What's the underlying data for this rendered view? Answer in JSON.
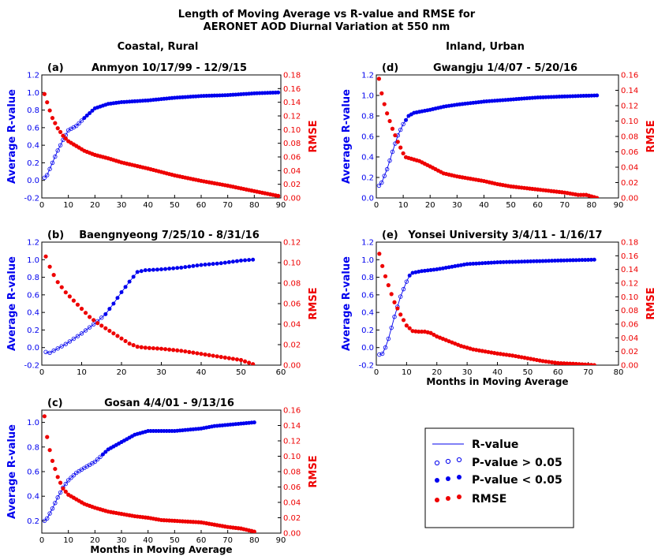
{
  "figure": {
    "title_line1": "Length of Moving Average vs R-value and RMSE for",
    "title_line2": "AERONET AOD Diurnal Variation at 550 nm",
    "column_left": "Coastal, Rural",
    "column_right": "Inland, Urban",
    "colors": {
      "r_value": "#0000ee",
      "rmse": "#ee0000",
      "axis": "#000000"
    }
  },
  "legend": {
    "items": [
      {
        "key": "line",
        "label": "R-value"
      },
      {
        "key": "open",
        "label": "P-value > 0.05"
      },
      {
        "key": "filled",
        "label": "P-value < 0.05"
      },
      {
        "key": "rmse",
        "label": "RMSE"
      }
    ]
  },
  "chart_data": [
    {
      "id": "a",
      "type": "line",
      "letter": "(a)",
      "title": "Anmyon 10/17/99 - 12/9/15",
      "xlabel": "",
      "ylabel_left": "Average R-value",
      "ylabel_right": "RMSE",
      "xlim": [
        0,
        90
      ],
      "xticks": [
        0,
        10,
        20,
        30,
        40,
        50,
        60,
        70,
        80,
        90
      ],
      "ylim_left": [
        -0.2,
        1.2
      ],
      "yticks_left": [
        -0.2,
        0.0,
        0.2,
        0.4,
        0.6,
        0.8,
        1.0,
        1.2
      ],
      "ylim_right": [
        0,
        0.18
      ],
      "yticks_right": [
        0.0,
        0.02,
        0.04,
        0.06,
        0.08,
        0.1,
        0.12,
        0.14,
        0.16,
        0.18
      ],
      "n_max": 89,
      "sig_from": 16,
      "series": [
        {
          "name": "R-value",
          "x": [
            1,
            2,
            4,
            6,
            8,
            10,
            13,
            16,
            20,
            25,
            30,
            40,
            50,
            60,
            70,
            80,
            89
          ],
          "y": [
            0.03,
            0.06,
            0.2,
            0.34,
            0.46,
            0.57,
            0.62,
            0.71,
            0.82,
            0.87,
            0.89,
            0.91,
            0.94,
            0.96,
            0.97,
            0.99,
            1.0
          ]
        },
        {
          "name": "RMSE",
          "x": [
            1,
            2,
            3,
            4,
            6,
            8,
            10,
            13,
            16,
            20,
            25,
            30,
            40,
            50,
            60,
            70,
            80,
            89
          ],
          "y": [
            0.152,
            0.14,
            0.128,
            0.117,
            0.102,
            0.091,
            0.083,
            0.076,
            0.069,
            0.063,
            0.058,
            0.052,
            0.043,
            0.033,
            0.025,
            0.018,
            0.01,
            0.003
          ]
        }
      ]
    },
    {
      "id": "b",
      "type": "line",
      "letter": "(b)",
      "title": "Baengnyeong 7/25/10 - 8/31/16",
      "xlabel": "",
      "ylabel_left": "Average R-value",
      "ylabel_right": "RMSE",
      "xlim": [
        0,
        60
      ],
      "xticks": [
        0,
        10,
        20,
        30,
        40,
        50,
        60
      ],
      "ylim_left": [
        -0.2,
        1.2
      ],
      "yticks_left": [
        -0.2,
        0.0,
        0.2,
        0.4,
        0.6,
        0.8,
        1.0,
        1.2
      ],
      "ylim_right": [
        0,
        0.12
      ],
      "yticks_right": [
        0.0,
        0.02,
        0.04,
        0.06,
        0.08,
        0.1,
        0.12
      ],
      "n_max": 53,
      "sig_from": 16,
      "series": [
        {
          "name": "R-value",
          "x": [
            1,
            2,
            4,
            6,
            8,
            10,
            12,
            14,
            16,
            18,
            20,
            22,
            24,
            26,
            30,
            35,
            40,
            45,
            50,
            53
          ],
          "y": [
            -0.05,
            -0.06,
            -0.01,
            0.04,
            0.1,
            0.16,
            0.23,
            0.3,
            0.38,
            0.5,
            0.63,
            0.75,
            0.86,
            0.88,
            0.89,
            0.91,
            0.94,
            0.96,
            0.99,
            1.0
          ]
        },
        {
          "name": "RMSE",
          "x": [
            1,
            2,
            3,
            4,
            6,
            8,
            10,
            12,
            14,
            16,
            18,
            20,
            22,
            24,
            26,
            30,
            35,
            40,
            45,
            50,
            53
          ],
          "y": [
            0.106,
            0.096,
            0.088,
            0.081,
            0.071,
            0.063,
            0.055,
            0.047,
            0.041,
            0.036,
            0.031,
            0.026,
            0.021,
            0.018,
            0.017,
            0.016,
            0.014,
            0.011,
            0.008,
            0.005,
            0.001
          ]
        }
      ]
    },
    {
      "id": "c",
      "type": "line",
      "letter": "(c)",
      "title": "Gosan 4/4/01 - 9/13/16",
      "xlabel": "Months in Moving Average",
      "ylabel_left": "Average R-value",
      "ylabel_right": "RMSE",
      "xlim": [
        0,
        90
      ],
      "xticks": [
        0,
        10,
        20,
        30,
        40,
        50,
        60,
        70,
        80,
        90
      ],
      "ylim_left": [
        0.1,
        1.1
      ],
      "yticks_left": [
        0.2,
        0.4,
        0.6,
        0.8,
        1.0
      ],
      "ylim_right": [
        0,
        0.16
      ],
      "yticks_right": [
        0.0,
        0.02,
        0.04,
        0.06,
        0.08,
        0.1,
        0.12,
        0.14,
        0.16
      ],
      "n_max": 80,
      "sig_from": 23,
      "series": [
        {
          "name": "R-value",
          "x": [
            1,
            2,
            4,
            6,
            8,
            10,
            13,
            16,
            20,
            25,
            30,
            35,
            40,
            45,
            50,
            55,
            60,
            65,
            70,
            75,
            80
          ],
          "y": [
            0.2,
            0.22,
            0.3,
            0.39,
            0.47,
            0.53,
            0.59,
            0.63,
            0.68,
            0.78,
            0.84,
            0.9,
            0.93,
            0.93,
            0.93,
            0.94,
            0.95,
            0.97,
            0.98,
            0.99,
            1.0
          ]
        },
        {
          "name": "RMSE",
          "x": [
            1,
            2,
            3,
            4,
            6,
            8,
            10,
            13,
            16,
            20,
            25,
            30,
            35,
            40,
            45,
            50,
            55,
            60,
            65,
            70,
            75,
            80
          ],
          "y": [
            0.152,
            0.125,
            0.108,
            0.094,
            0.073,
            0.058,
            0.05,
            0.044,
            0.038,
            0.033,
            0.028,
            0.025,
            0.022,
            0.02,
            0.017,
            0.016,
            0.015,
            0.014,
            0.011,
            0.008,
            0.006,
            0.002
          ]
        }
      ]
    },
    {
      "id": "d",
      "type": "line",
      "letter": "(d)",
      "title": "Gwangju 1/4/07 - 5/20/16",
      "xlabel": "",
      "ylabel_left": "Average R-value",
      "ylabel_right": "RMSE",
      "xlim": [
        0,
        90
      ],
      "xticks": [
        0,
        10,
        20,
        30,
        40,
        50,
        60,
        70,
        80,
        90
      ],
      "ylim_left": [
        0.0,
        1.2
      ],
      "yticks_left": [
        0.0,
        0.2,
        0.4,
        0.6,
        0.8,
        1.0,
        1.2
      ],
      "ylim_right": [
        0,
        0.16
      ],
      "yticks_right": [
        0.0,
        0.02,
        0.04,
        0.06,
        0.08,
        0.1,
        0.12,
        0.14,
        0.16
      ],
      "n_max": 82,
      "sig_from": 11,
      "series": [
        {
          "name": "R-value",
          "x": [
            1,
            2,
            4,
            6,
            8,
            10,
            12,
            14,
            16,
            20,
            25,
            30,
            40,
            50,
            60,
            70,
            82
          ],
          "y": [
            0.12,
            0.15,
            0.28,
            0.45,
            0.61,
            0.72,
            0.8,
            0.83,
            0.84,
            0.86,
            0.89,
            0.91,
            0.94,
            0.96,
            0.98,
            0.99,
            1.0
          ]
        },
        {
          "name": "RMSE",
          "x": [
            1,
            2,
            3,
            4,
            5,
            6,
            8,
            10,
            11,
            14,
            16,
            20,
            25,
            30,
            35,
            40,
            45,
            50,
            55,
            60,
            65,
            70,
            75,
            78,
            82
          ],
          "y": [
            0.155,
            0.136,
            0.122,
            0.11,
            0.1,
            0.09,
            0.073,
            0.058,
            0.053,
            0.05,
            0.048,
            0.041,
            0.032,
            0.028,
            0.025,
            0.022,
            0.018,
            0.015,
            0.013,
            0.011,
            0.009,
            0.007,
            0.004,
            0.004,
            0.0
          ]
        }
      ]
    },
    {
      "id": "e",
      "type": "line",
      "letter": "(e)",
      "title": "Yonsei University 3/4/11 - 1/16/17",
      "xlabel": "Months in Moving Average",
      "ylabel_left": "Average R-value",
      "ylabel_right": "RMSE",
      "xlim": [
        0,
        80
      ],
      "xticks": [
        0,
        10,
        20,
        30,
        40,
        50,
        60,
        70,
        80
      ],
      "ylim_left": [
        -0.2,
        1.2
      ],
      "yticks_left": [
        -0.2,
        0.0,
        0.2,
        0.4,
        0.6,
        0.8,
        1.0,
        1.2
      ],
      "ylim_right": [
        0,
        0.18
      ],
      "yticks_right": [
        0.0,
        0.02,
        0.04,
        0.06,
        0.08,
        0.1,
        0.12,
        0.14,
        0.16,
        0.18
      ],
      "n_max": 72,
      "sig_from": 11,
      "series": [
        {
          "name": "R-value",
          "x": [
            1,
            2,
            3,
            4,
            6,
            8,
            10,
            11,
            12,
            15,
            20,
            25,
            30,
            40,
            50,
            60,
            72
          ],
          "y": [
            -0.08,
            -0.07,
            0.0,
            0.1,
            0.35,
            0.58,
            0.75,
            0.82,
            0.85,
            0.87,
            0.89,
            0.92,
            0.95,
            0.97,
            0.98,
            0.99,
            1.0
          ]
        },
        {
          "name": "RMSE",
          "x": [
            1,
            2,
            3,
            4,
            5,
            6,
            8,
            10,
            12,
            14,
            16,
            18,
            20,
            24,
            28,
            32,
            36,
            40,
            45,
            50,
            55,
            60,
            65,
            72
          ],
          "y": [
            0.163,
            0.145,
            0.13,
            0.117,
            0.104,
            0.092,
            0.074,
            0.058,
            0.05,
            0.049,
            0.049,
            0.047,
            0.042,
            0.035,
            0.028,
            0.023,
            0.02,
            0.017,
            0.014,
            0.01,
            0.006,
            0.003,
            0.002,
            0.0
          ]
        }
      ]
    }
  ]
}
